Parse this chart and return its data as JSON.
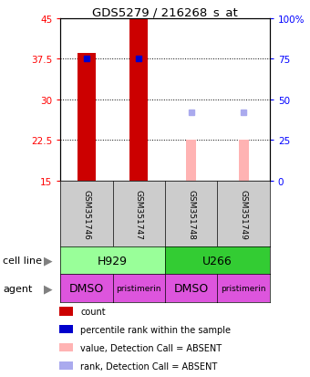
{
  "title": "GDS5279 / 216268_s_at",
  "samples": [
    "GSM351746",
    "GSM351747",
    "GSM351748",
    "GSM351749"
  ],
  "bar_values": [
    38.5,
    45.0,
    null,
    null
  ],
  "bar_color_present": "#cc0000",
  "bar_color_absent": "#ffb3b3",
  "absent_bar_values": [
    null,
    null,
    22.5,
    22.5
  ],
  "percentile_present": [
    75,
    75,
    null,
    null
  ],
  "percentile_absent": [
    null,
    null,
    42,
    42
  ],
  "ylim_left": [
    15,
    45
  ],
  "ylim_right": [
    0,
    100
  ],
  "yticks_left": [
    15,
    22.5,
    30,
    37.5,
    45
  ],
  "yticks_right": [
    0,
    25,
    50,
    75,
    100
  ],
  "ytick_labels_right": [
    "0",
    "25",
    "50",
    "75",
    "100%"
  ],
  "cell_lines": [
    [
      "H929",
      0,
      2
    ],
    [
      "U266",
      2,
      2
    ]
  ],
  "cell_line_colors": {
    "H929": "#99ff99",
    "U266": "#33cc33"
  },
  "agent_row": [
    "DMSO",
    "pristimerin",
    "DMSO",
    "pristimerin"
  ],
  "agent_color": "#dd55dd",
  "sample_box_color": "#cccccc",
  "legend_items": [
    {
      "label": "count",
      "color": "#cc0000"
    },
    {
      "label": "percentile rank within the sample",
      "color": "#0000cc"
    },
    {
      "label": "value, Detection Call = ABSENT",
      "color": "#ffb3b3"
    },
    {
      "label": "rank, Detection Call = ABSENT",
      "color": "#aaaaee"
    }
  ],
  "bar_width": 0.35,
  "absent_square_color": "#aaaaee",
  "n_samples": 4
}
